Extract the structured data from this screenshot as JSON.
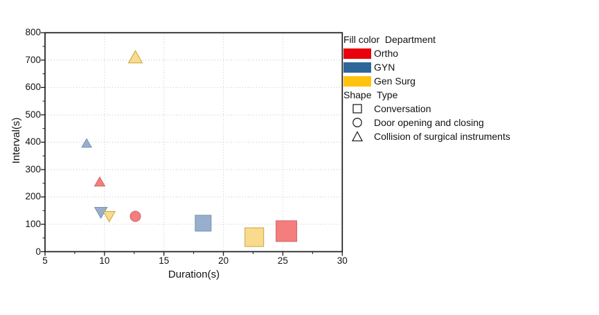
{
  "chart_data": {
    "type": "scatter",
    "title": "",
    "xlabel": "Duration(s)",
    "ylabel": "Interval(s)",
    "xlim": [
      5,
      30
    ],
    "ylim": [
      0,
      800
    ],
    "x_ticks": [
      5,
      10,
      15,
      20,
      25,
      30
    ],
    "y_ticks": [
      0,
      100,
      200,
      300,
      400,
      500,
      600,
      700,
      800
    ],
    "x_minor_step": 2.5,
    "y_minor_step": 50,
    "grid": "dotted",
    "grid_color": "#c4c4c4",
    "axis_color": "#1a1a1a",
    "legend_position": "upper right, outside plot",
    "points": [
      {
        "department": "Gen Surg",
        "shape": "triangle-up",
        "x": 12.6,
        "y": 712,
        "size": 20
      },
      {
        "department": "GYN",
        "shape": "triangle-up",
        "x": 8.5,
        "y": 397,
        "size": 14
      },
      {
        "department": "Ortho",
        "shape": "triangle-up",
        "x": 9.6,
        "y": 256,
        "size": 15
      },
      {
        "department": "GYN",
        "shape": "triangle-down",
        "x": 9.7,
        "y": 142,
        "size": 18
      },
      {
        "department": "Gen Surg",
        "shape": "triangle-down",
        "x": 10.4,
        "y": 128,
        "size": 17
      },
      {
        "department": "Ortho",
        "shape": "circle",
        "x": 12.6,
        "y": 129,
        "size": 15
      },
      {
        "department": "GYN",
        "shape": "square",
        "x": 18.3,
        "y": 104,
        "size": 23
      },
      {
        "department": "Gen Surg",
        "shape": "square",
        "x": 22.6,
        "y": 53,
        "size": 27
      },
      {
        "department": "Ortho",
        "shape": "square",
        "x": 25.3,
        "y": 75,
        "size": 30
      }
    ],
    "legend": {
      "color_title": "Fill color  Department",
      "departments": [
        {
          "label": "Ortho",
          "swatch": "#e8000d",
          "fill": "#f47d7d",
          "edge": "#cf6666"
        },
        {
          "label": "GYN",
          "swatch": "#2f6699",
          "fill": "#97afcd",
          "edge": "#7391b3"
        },
        {
          "label": "Gen Surg",
          "swatch": "#ffc20e",
          "fill": "#f8db8d",
          "edge": "#c9a23a"
        }
      ],
      "shape_title": "Shape  Type",
      "shapes": [
        {
          "label": "Conversation",
          "shape": "square"
        },
        {
          "label": "Door opening and closing",
          "shape": "circle"
        },
        {
          "label": "Collision of surgical instruments",
          "shape": "triangle-up"
        }
      ]
    }
  }
}
